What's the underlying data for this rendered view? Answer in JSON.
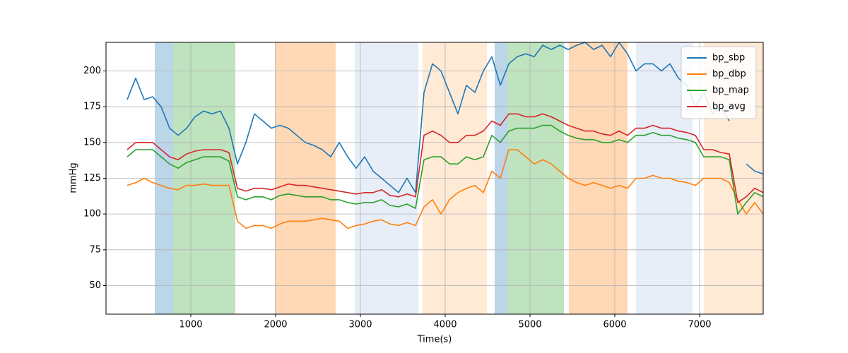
{
  "chart_data": {
    "type": "line",
    "xlabel": "Time(s)",
    "ylabel": "mmHg",
    "xlim": [
      0,
      7750
    ],
    "ylim": [
      30,
      220
    ],
    "xticks": [
      1000,
      2000,
      3000,
      4000,
      5000,
      6000,
      7000
    ],
    "yticks": [
      50,
      75,
      100,
      125,
      150,
      175,
      200
    ],
    "grid": true,
    "legend": "upper right",
    "spans": [
      {
        "x": [
          575,
          792
        ],
        "color": "#1f77b4",
        "alpha": 0.3
      },
      {
        "x": [
          792,
          1525
        ],
        "color": "#2ca02c",
        "alpha": 0.3
      },
      {
        "x": [
          1992,
          2708
        ],
        "color": "#ff7f0e",
        "alpha": 0.3
      },
      {
        "x": [
          2933,
          3683
        ],
        "color": "#aec7e8",
        "alpha": 0.3
      },
      {
        "x": [
          3733,
          4492
        ],
        "color": "#ffbb78",
        "alpha": 0.3
      },
      {
        "x": [
          4583,
          4733
        ],
        "color": "#1f77b4",
        "alpha": 0.3
      },
      {
        "x": [
          4733,
          5400
        ],
        "color": "#2ca02c",
        "alpha": 0.3
      },
      {
        "x": [
          5458,
          6150
        ],
        "color": "#ff7f0e",
        "alpha": 0.3
      },
      {
        "x": [
          6250,
          6917
        ],
        "color": "#aec7e8",
        "alpha": 0.3
      },
      {
        "x": [
          7050,
          7750
        ],
        "color": "#ffbb78",
        "alpha": 0.3
      }
    ],
    "x": [
      250,
      350,
      450,
      550,
      650,
      750,
      850,
      950,
      1050,
      1150,
      1250,
      1350,
      1450,
      1550,
      1650,
      1750,
      1850,
      1950,
      2050,
      2150,
      2250,
      2350,
      2450,
      2550,
      2650,
      2750,
      2850,
      2950,
      3050,
      3150,
      3250,
      3350,
      3450,
      3550,
      3650,
      3750,
      3850,
      3950,
      4050,
      4150,
      4250,
      4350,
      4450,
      4550,
      4650,
      4750,
      4850,
      4950,
      5050,
      5150,
      5250,
      5350,
      5450,
      5550,
      5650,
      5750,
      5850,
      5950,
      6050,
      6150,
      6250,
      6350,
      6450,
      6550,
      6650,
      6750,
      6850,
      6950,
      7050,
      7150,
      7250,
      7350,
      7450,
      7550,
      7650,
      7750
    ],
    "series": [
      {
        "name": "bp_sbp",
        "color": "#1f77b4",
        "values": [
          180,
          195,
          180,
          182,
          175,
          160,
          155,
          160,
          168,
          172,
          170,
          172,
          160,
          135,
          150,
          170,
          165,
          160,
          162,
          160,
          155,
          150,
          148,
          145,
          140,
          150,
          140,
          132,
          140,
          130,
          125,
          120,
          115,
          125,
          115,
          185,
          205,
          200,
          185,
          170,
          190,
          185,
          200,
          210,
          190,
          205,
          210,
          212,
          210,
          218,
          215,
          218,
          215,
          218,
          220,
          215,
          218,
          210,
          220,
          212,
          200,
          205,
          205,
          200,
          205,
          195,
          190,
          175,
          185,
          170,
          175,
          165,
          null,
          135,
          130,
          128
        ]
      },
      {
        "name": "bp_dbp",
        "color": "#ff7f0e",
        "values": [
          120,
          122,
          125,
          122,
          120,
          118,
          117,
          120,
          120,
          121,
          120,
          120,
          120,
          95,
          90,
          92,
          92,
          90,
          93,
          95,
          95,
          95,
          96,
          97,
          96,
          95,
          90,
          92,
          93,
          95,
          96,
          93,
          92,
          94,
          92,
          105,
          110,
          100,
          110,
          115,
          118,
          120,
          115,
          130,
          125,
          145,
          145,
          140,
          135,
          138,
          135,
          130,
          125,
          122,
          120,
          122,
          120,
          118,
          120,
          118,
          125,
          125,
          127,
          125,
          125,
          123,
          122,
          120,
          125,
          125,
          125,
          122,
          110,
          100,
          108,
          100
        ]
      },
      {
        "name": "bp_map",
        "color": "#2ca02c",
        "values": [
          140,
          145,
          145,
          145,
          140,
          135,
          132,
          136,
          138,
          140,
          140,
          140,
          137,
          112,
          110,
          112,
          112,
          110,
          113,
          114,
          113,
          112,
          112,
          112,
          110,
          110,
          108,
          107,
          108,
          108,
          110,
          106,
          105,
          107,
          104,
          138,
          140,
          140,
          135,
          135,
          140,
          138,
          140,
          155,
          150,
          158,
          160,
          160,
          160,
          162,
          162,
          158,
          155,
          153,
          152,
          152,
          150,
          150,
          152,
          150,
          155,
          155,
          157,
          155,
          155,
          153,
          152,
          150,
          140,
          140,
          140,
          138,
          100,
          108,
          115,
          112
        ]
      },
      {
        "name": "bp_avg",
        "color": "#d62728",
        "values": [
          145,
          150,
          150,
          150,
          145,
          140,
          138,
          142,
          144,
          145,
          145,
          145,
          143,
          118,
          116,
          118,
          118,
          117,
          119,
          121,
          120,
          120,
          119,
          118,
          117,
          116,
          115,
          114,
          115,
          115,
          117,
          113,
          112,
          114,
          112,
          155,
          158,
          155,
          150,
          150,
          155,
          155,
          158,
          165,
          162,
          170,
          170,
          168,
          168,
          170,
          168,
          165,
          162,
          160,
          158,
          158,
          156,
          155,
          158,
          155,
          160,
          160,
          162,
          160,
          160,
          158,
          157,
          155,
          145,
          145,
          143,
          142,
          108,
          112,
          118,
          115
        ]
      }
    ]
  }
}
